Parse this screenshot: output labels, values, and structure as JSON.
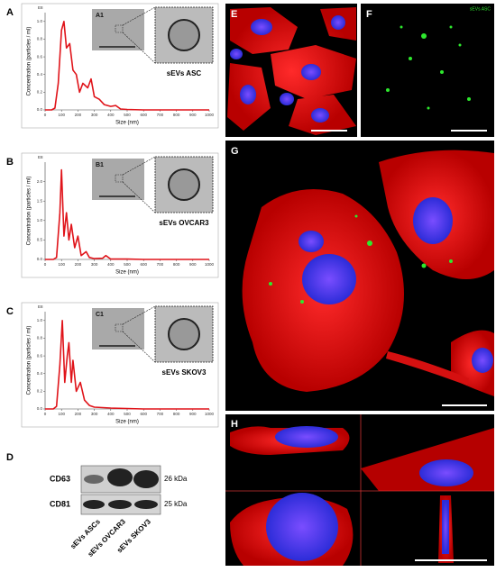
{
  "chart_data": [
    {
      "type": "line",
      "panel": "A",
      "inset_label": "A1",
      "caption": "sEVs ASC",
      "scale_label": "E8",
      "xlabel": "Size (nm)",
      "ylabel": "Concentration (particles / ml)",
      "color": "#e0141a",
      "x": [
        0,
        40,
        60,
        80,
        100,
        115,
        130,
        150,
        170,
        190,
        210,
        230,
        260,
        280,
        300,
        330,
        360,
        400,
        430,
        460,
        500,
        600,
        800,
        1000
      ],
      "values": [
        0,
        0,
        0.02,
        0.3,
        0.9,
        1.0,
        0.7,
        0.75,
        0.45,
        0.4,
        0.2,
        0.3,
        0.25,
        0.35,
        0.15,
        0.12,
        0.06,
        0.04,
        0.05,
        0.01,
        0.005,
        0,
        0,
        0
      ],
      "xlim": [
        0,
        1000
      ],
      "xticks": [
        0,
        100,
        200,
        300,
        400,
        500,
        600,
        700,
        800,
        900,
        1000
      ],
      "ylim": [
        0,
        1.1
      ],
      "yticks": [
        {
          "value": 0,
          "label": "0.0"
        },
        0.2,
        0.4,
        0.6,
        0.8,
        {
          "value": 1,
          "label": "1.0"
        }
      ]
    },
    {
      "type": "line",
      "panel": "B",
      "inset_label": "B1",
      "caption": "sEVs OVCAR3",
      "scale_label": "E8",
      "xlabel": "Size (nm)",
      "ylabel": "Concentration (particles / ml)",
      "color": "#e0141a",
      "x": [
        0,
        50,
        70,
        90,
        100,
        115,
        130,
        145,
        160,
        180,
        200,
        220,
        250,
        270,
        300,
        350,
        370,
        400,
        500,
        600,
        800,
        1000
      ],
      "values": [
        0,
        0,
        0.05,
        1.2,
        2.3,
        0.6,
        1.2,
        0.5,
        0.9,
        0.3,
        0.6,
        0.1,
        0.2,
        0.05,
        0.02,
        0.03,
        0.1,
        0.01,
        0.01,
        0,
        0,
        0
      ],
      "xlim": [
        0,
        1000
      ],
      "xticks": [
        0,
        100,
        200,
        300,
        400,
        500,
        600,
        700,
        800,
        900,
        1000
      ],
      "ylim": [
        0,
        2.5
      ],
      "yticks": [
        {
          "value": 0,
          "label": "0.0"
        },
        0.5,
        {
          "value": 1,
          "label": "1.0"
        },
        1.5,
        {
          "value": 2,
          "label": "2.0"
        }
      ]
    },
    {
      "type": "line",
      "panel": "C",
      "inset_label": "C1",
      "caption": "sEVs SKOV3",
      "scale_label": "E8",
      "xlabel": "Size (nm)",
      "ylabel": "Concentration (particles / ml)",
      "color": "#e0141a",
      "x": [
        0,
        50,
        70,
        90,
        105,
        120,
        135,
        145,
        160,
        170,
        190,
        215,
        240,
        270,
        300,
        400,
        500,
        600,
        800,
        1000
      ],
      "values": [
        0,
        0,
        0.03,
        0.5,
        1.0,
        0.3,
        0.6,
        0.75,
        0.3,
        0.55,
        0.2,
        0.3,
        0.1,
        0.04,
        0.02,
        0.01,
        0.005,
        0,
        0,
        0
      ],
      "xlim": [
        0,
        1000
      ],
      "xticks": [
        0,
        100,
        200,
        300,
        400,
        500,
        600,
        700,
        800,
        900,
        1000
      ],
      "ylim": [
        0,
        1.1
      ],
      "yticks": [
        {
          "value": 0,
          "label": "0.0"
        },
        0.2,
        0.4,
        0.6,
        0.8,
        {
          "value": 1,
          "label": "1.0"
        }
      ]
    }
  ],
  "blot": {
    "panel": "D",
    "rows": [
      "CD63",
      "CD81"
    ],
    "sizes": [
      "26 kDa",
      "25 kDa"
    ],
    "lanes": [
      "sEVs ASCs",
      "sEVs OVCAR3",
      "sEVs SKOV3"
    ]
  },
  "images": {
    "e": "E",
    "f": "F",
    "f_label": "sEVs ASC",
    "g": "G",
    "h": "H"
  }
}
